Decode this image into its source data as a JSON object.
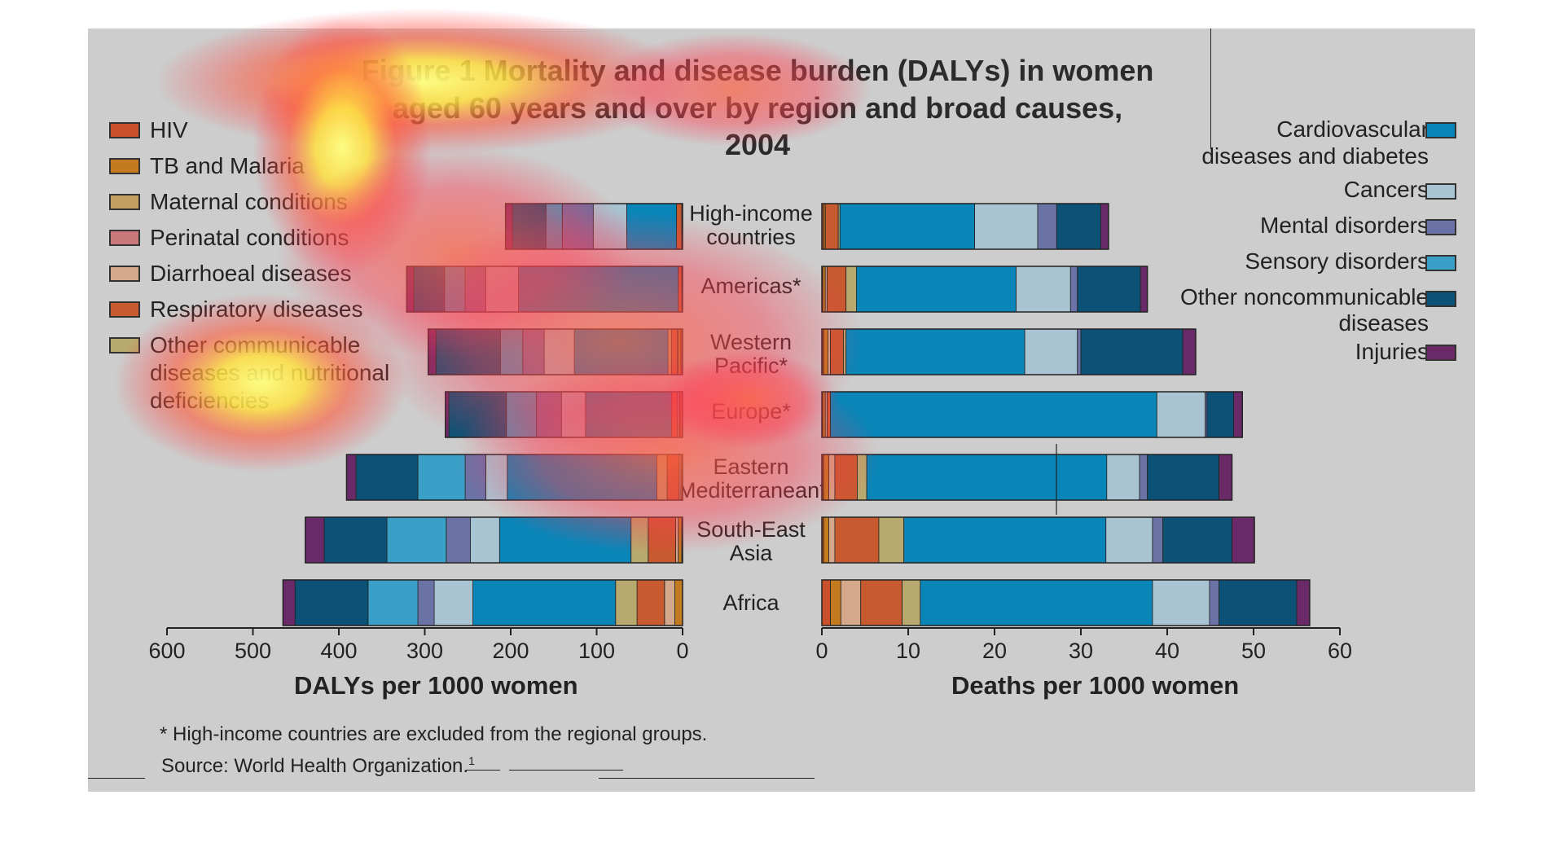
{
  "title_line1": "Figure 1 Mortality and disease burden (DALYs) in women",
  "title_line2": "aged 60 years and over by region and broad causes, 2004",
  "legend_left": [
    {
      "label": "HIV",
      "color": "#c8502a"
    },
    {
      "label": "TB and Malaria",
      "color": "#c47a1e"
    },
    {
      "label": "Maternal conditions",
      "color": "#c2a060"
    },
    {
      "label": "Perinatal conditions",
      "color": "#c87878"
    },
    {
      "label": "Diarrhoeal diseases",
      "color": "#d4a88a"
    },
    {
      "label": "Respiratory diseases",
      "color": "#c85a30"
    },
    {
      "label": "Other communicable diseases and nutritional deficiencies",
      "color": "#b8aa6e"
    }
  ],
  "legend_left_lines": [
    "Other communicable",
    "diseases and nutritional",
    "deficiencies"
  ],
  "legend_right": [
    {
      "label": "Cardiovascular diseases and diabetes",
      "lines": [
        "Cardiovascular",
        "diseases and diabetes"
      ],
      "color": "#0a85b8"
    },
    {
      "label": "Cancers",
      "lines": [
        "Cancers"
      ],
      "color": "#a8c4d2"
    },
    {
      "label": "Mental disorders",
      "lines": [
        "Mental disorders"
      ],
      "color": "#6a72a6"
    },
    {
      "label": "Sensory disorders",
      "lines": [
        "Sensory disorders"
      ],
      "color": "#3aa0c8"
    },
    {
      "label": "Other noncommunicable diseases",
      "lines": [
        "Other noncommunicable",
        "diseases"
      ],
      "color": "#0b5276"
    },
    {
      "label": "Injuries",
      "lines": [
        "Injuries"
      ],
      "color": "#6a2a68"
    }
  ],
  "region_labels": [
    [
      "High-income",
      "countries"
    ],
    [
      "Americas*"
    ],
    [
      "Western",
      "Pacific*"
    ],
    [
      "Europe*"
    ],
    [
      "Eastern",
      "Mediterranean*"
    ],
    [
      "South-East",
      "Asia"
    ],
    [
      "Africa"
    ]
  ],
  "left_axis_title": "DALYs per 1000 women",
  "right_axis_title": "Deaths per 1000 women",
  "left_ticks": [
    "600",
    "500",
    "400",
    "300",
    "200",
    "100",
    "0"
  ],
  "right_ticks": [
    "0",
    "10",
    "20",
    "30",
    "40",
    "50",
    "60"
  ],
  "footnote": "* High-income countries are excluded from the regional groups.",
  "source": "Source: World Health Organization.",
  "source_sup": "1",
  "chart_data": [
    {
      "type": "bar",
      "orientation": "horizontal",
      "stacked": true,
      "xlabel": "DALYs per 1000 women",
      "xlim": [
        0,
        600
      ],
      "categories": [
        "High-income countries",
        "Americas*",
        "Western Pacific*",
        "Europe*",
        "Eastern Mediterranean*",
        "South-East Asia",
        "Africa"
      ],
      "series": [
        {
          "name": "HIV",
          "values": [
            0,
            0,
            2,
            3,
            0,
            1,
            0
          ]
        },
        {
          "name": "TB and Malaria",
          "values": [
            1,
            1,
            3,
            1,
            2,
            4,
            9
          ]
        },
        {
          "name": "Maternal conditions",
          "values": [
            0,
            0,
            0,
            0,
            0,
            0,
            0
          ]
        },
        {
          "name": "Perinatal conditions",
          "values": [
            0,
            0,
            0,
            0,
            0,
            0,
            0
          ]
        },
        {
          "name": "Diarrhoeal diseases",
          "values": [
            0,
            0,
            1,
            2,
            2,
            3,
            12
          ]
        },
        {
          "name": "Respiratory diseases",
          "values": [
            6,
            4,
            7,
            7,
            14,
            32,
            32
          ]
        },
        {
          "name": "Other communicable diseases and nutritional deficiencies",
          "values": [
            0,
            0,
            4,
            0,
            12,
            20,
            25
          ]
        },
        {
          "name": "Cardiovascular diseases and diabetes",
          "values": [
            58,
            186,
            109,
            100,
            174,
            153,
            166
          ]
        },
        {
          "name": "Cancers",
          "values": [
            39,
            38,
            35,
            28,
            25,
            34,
            45
          ]
        },
        {
          "name": "Mental disorders",
          "values": [
            36,
            24,
            25,
            29,
            24,
            28,
            19
          ]
        },
        {
          "name": "Sensory disorders",
          "values": [
            19,
            24,
            26,
            35,
            55,
            69,
            58
          ]
        },
        {
          "name": "Other noncommunicable diseases",
          "values": [
            39,
            36,
            75,
            67,
            72,
            73,
            85
          ]
        },
        {
          "name": "Injuries",
          "values": [
            8,
            8,
            9,
            4,
            11,
            22,
            14
          ]
        }
      ]
    },
    {
      "type": "bar",
      "orientation": "horizontal",
      "stacked": true,
      "xlabel": "Deaths per 1000 women",
      "xlim": [
        0,
        60
      ],
      "categories": [
        "High-income countries",
        "Americas*",
        "Western Pacific*",
        "Europe*",
        "Eastern Mediterranean*",
        "South-East Asia",
        "Africa"
      ],
      "series": [
        {
          "name": "HIV",
          "values": [
            0.2,
            0.1,
            0.2,
            0.1,
            0.2,
            0.2,
            1.0
          ]
        },
        {
          "name": "TB and Malaria",
          "values": [
            0.2,
            0.3,
            0.5,
            0.3,
            0.6,
            0.6,
            1.2
          ]
        },
        {
          "name": "Maternal conditions",
          "values": [
            0,
            0,
            0,
            0,
            0,
            0,
            0
          ]
        },
        {
          "name": "Perinatal conditions",
          "values": [
            0,
            0,
            0,
            0,
            0,
            0,
            0
          ]
        },
        {
          "name": "Diarrhoeal diseases",
          "values": [
            0,
            0.2,
            0.3,
            0.2,
            0.7,
            0.7,
            2.3
          ]
        },
        {
          "name": "Respiratory diseases",
          "values": [
            1.5,
            2.2,
            1.5,
            0.4,
            2.6,
            5.1,
            4.8
          ]
        },
        {
          "name": "Other communicable diseases and nutritional deficiencies",
          "values": [
            0.2,
            1.2,
            0.3,
            0,
            1.1,
            2.9,
            2.1
          ]
        },
        {
          "name": "Cardiovascular diseases and diabetes",
          "values": [
            15.6,
            18.5,
            20.7,
            37.8,
            27.8,
            23.4,
            26.9
          ]
        },
        {
          "name": "Cancers",
          "values": [
            7.3,
            6.3,
            6.1,
            5.6,
            3.8,
            5.4,
            6.6
          ]
        },
        {
          "name": "Mental disorders",
          "values": [
            2.2,
            0.8,
            0.4,
            0.2,
            0.9,
            1.2,
            1.1
          ]
        },
        {
          "name": "Sensory disorders",
          "values": [
            0,
            0,
            0,
            0,
            0,
            0,
            0
          ]
        },
        {
          "name": "Other noncommunicable diseases",
          "values": [
            5.1,
            7.3,
            11.8,
            3.1,
            8.3,
            8.0,
            9.0
          ]
        },
        {
          "name": "Injuries",
          "values": [
            0.9,
            0.8,
            1.5,
            1.0,
            1.5,
            2.6,
            1.5
          ]
        }
      ]
    }
  ]
}
